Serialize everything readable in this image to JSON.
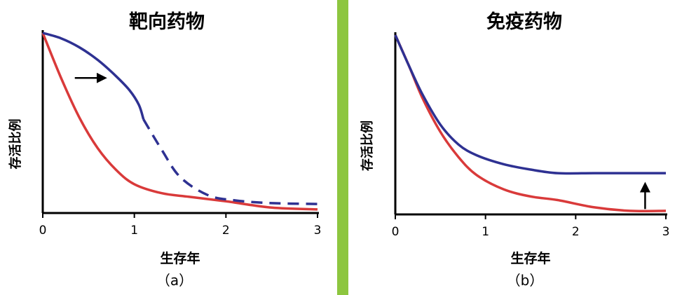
{
  "divider_color": "#8dc63f",
  "chart_data": [
    {
      "type": "line",
      "title": "靶向药物",
      "xlabel": "生存年",
      "ylabel": "存活比例",
      "caption": "（a）",
      "xlim": [
        0,
        3
      ],
      "ylim": [
        0,
        1
      ],
      "xticks": [
        "0",
        "1",
        "2",
        "3"
      ],
      "yticks_shown": false,
      "grid": false,
      "series": [
        {
          "color": "#2e3192",
          "style": "solid",
          "x": [
            0,
            0.2,
            0.4,
            0.6,
            0.8,
            0.95,
            1.05,
            1.1
          ],
          "y": [
            1.0,
            0.97,
            0.92,
            0.85,
            0.76,
            0.68,
            0.6,
            0.52
          ]
        },
        {
          "color": "#2e3192",
          "style": "dashed",
          "x": [
            1.1,
            1.3,
            1.5,
            1.8,
            2.1,
            2.5,
            3.0
          ],
          "y": [
            0.52,
            0.35,
            0.2,
            0.1,
            0.07,
            0.055,
            0.05
          ]
        },
        {
          "color": "#d93a3a",
          "style": "solid",
          "x": [
            0,
            0.2,
            0.4,
            0.6,
            0.8,
            1.0,
            1.3,
            1.6,
            2.0,
            2.5,
            3.0
          ],
          "y": [
            1.0,
            0.75,
            0.53,
            0.36,
            0.24,
            0.16,
            0.11,
            0.09,
            0.065,
            0.03,
            0.02
          ]
        }
      ],
      "annotations": [
        {
          "type": "arrow",
          "direction": "right",
          "x_from": 0.35,
          "x_to": 0.68,
          "y": 0.75,
          "color": "#000000"
        }
      ]
    },
    {
      "type": "line",
      "title": "免疫药物",
      "xlabel": "生存年",
      "ylabel": "存活比例",
      "caption": "（b）",
      "xlim": [
        0,
        3
      ],
      "ylim": [
        0,
        1
      ],
      "xticks": [
        "0",
        "1",
        "2",
        "3"
      ],
      "yticks_shown": false,
      "grid": false,
      "series": [
        {
          "color": "#2e3192",
          "style": "solid",
          "x": [
            0,
            0.15,
            0.3,
            0.5,
            0.7,
            0.9,
            1.2,
            1.5,
            1.8,
            2.2,
            2.6,
            3.0
          ],
          "y": [
            1.0,
            0.83,
            0.67,
            0.5,
            0.39,
            0.33,
            0.28,
            0.25,
            0.23,
            0.23,
            0.23,
            0.23
          ]
        },
        {
          "color": "#d93a3a",
          "style": "solid",
          "x": [
            0,
            0.15,
            0.3,
            0.5,
            0.7,
            0.9,
            1.2,
            1.5,
            1.8,
            2.2,
            2.6,
            3.0
          ],
          "y": [
            1.0,
            0.83,
            0.65,
            0.46,
            0.32,
            0.22,
            0.14,
            0.1,
            0.08,
            0.04,
            0.02,
            0.02
          ]
        }
      ],
      "annotations": [
        {
          "type": "arrow",
          "direction": "up",
          "x": 2.77,
          "y_from": 0.03,
          "y_to": 0.17,
          "color": "#000000"
        }
      ]
    }
  ]
}
